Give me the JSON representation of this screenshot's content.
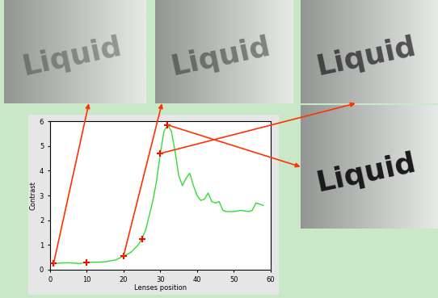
{
  "chart_data": {
    "type": "line",
    "x_label": "Lenses position",
    "y_label": "Contrast",
    "xlim": [
      0,
      60
    ],
    "xticks": [
      0,
      10,
      20,
      30,
      40,
      50,
      60
    ],
    "ylim": [
      0,
      6
    ],
    "yticks": [
      0,
      1,
      2,
      3,
      4,
      5,
      6
    ],
    "grid": false,
    "series": [
      {
        "color": "#33dd33",
        "line_style": "solid",
        "x": [
          0,
          1,
          3,
          5,
          8,
          10,
          12,
          15,
          18,
          20,
          22,
          24,
          25,
          26,
          27,
          28,
          29,
          30,
          31,
          32,
          33,
          34,
          35,
          36,
          37,
          38,
          39,
          40,
          41,
          42,
          43,
          44,
          45,
          46,
          47,
          48,
          50,
          52,
          54,
          55,
          56,
          57,
          58
        ],
        "values": [
          0.25,
          0.25,
          0.27,
          0.28,
          0.25,
          0.3,
          0.3,
          0.32,
          0.4,
          0.55,
          0.7,
          1.0,
          1.25,
          1.6,
          2.2,
          2.8,
          3.6,
          4.7,
          5.6,
          5.85,
          5.6,
          4.8,
          3.8,
          3.4,
          3.7,
          3.9,
          3.4,
          3.0,
          2.8,
          2.85,
          3.1,
          2.75,
          2.7,
          2.75,
          2.4,
          2.35,
          2.35,
          2.4,
          2.35,
          2.4,
          2.7,
          2.65,
          2.6
        ]
      },
      {
        "type": "scatter",
        "color": "#ff0000",
        "marker": "plus",
        "x": [
          1,
          10,
          20,
          25,
          30,
          32
        ],
        "values": [
          0.25,
          0.3,
          0.55,
          1.25,
          4.7,
          5.85
        ]
      }
    ]
  },
  "images": [
    {
      "text": "Liquid",
      "points_to": [
        1,
        0.25
      ]
    },
    {
      "text": "Liquid",
      "points_to": [
        20,
        0.55
      ]
    },
    {
      "text": "Liquid",
      "points_to": [
        30,
        4.7
      ]
    },
    {
      "text": "Liquid",
      "points_to": [
        32,
        5.85
      ]
    }
  ]
}
